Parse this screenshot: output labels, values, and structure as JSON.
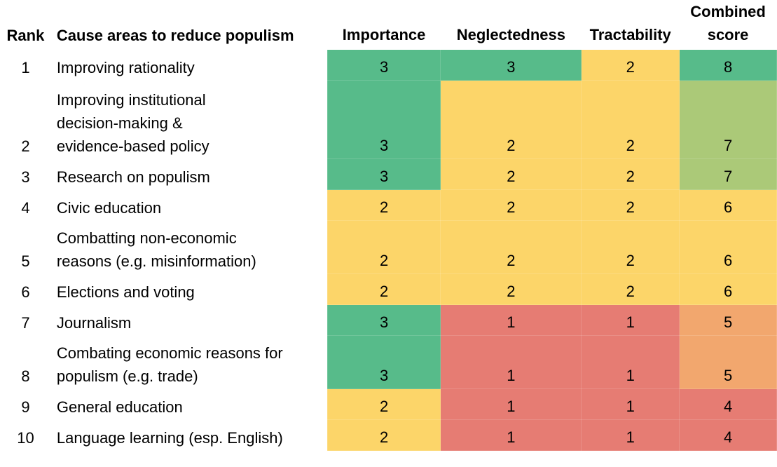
{
  "colors": {
    "green": "#57bb8a",
    "light_green": "#abc978",
    "yellow": "#fcd569",
    "orange": "#f2a76e",
    "red": "#e67c73"
  },
  "header": {
    "rank": "Rank",
    "cause": "Cause areas to reduce populism",
    "importance": "Importance",
    "neglectedness": "Neglectedness",
    "tractability": "Tractability",
    "combined_line1": "Combined",
    "combined_line2": "score"
  },
  "rows": [
    {
      "rank": "1",
      "cause_lines": [
        "Improving rationality"
      ],
      "importance": "3",
      "neglectedness": "3",
      "tractability": "2",
      "combined": "8",
      "colors": {
        "importance": "green",
        "neglectedness": "green",
        "tractability": "yellow",
        "combined": "green"
      }
    },
    {
      "rank": "2",
      "cause_lines": [
        "Improving institutional",
        "decision-making &",
        "evidence-based policy"
      ],
      "importance": "3",
      "neglectedness": "2",
      "tractability": "2",
      "combined": "7",
      "colors": {
        "importance": "green",
        "neglectedness": "yellow",
        "tractability": "yellow",
        "combined": "light_green"
      }
    },
    {
      "rank": "3",
      "cause_lines": [
        "Research on populism"
      ],
      "importance": "3",
      "neglectedness": "2",
      "tractability": "2",
      "combined": "7",
      "colors": {
        "importance": "green",
        "neglectedness": "yellow",
        "tractability": "yellow",
        "combined": "light_green"
      }
    },
    {
      "rank": "4",
      "cause_lines": [
        "Civic education"
      ],
      "importance": "2",
      "neglectedness": "2",
      "tractability": "2",
      "combined": "6",
      "colors": {
        "importance": "yellow",
        "neglectedness": "yellow",
        "tractability": "yellow",
        "combined": "yellow"
      }
    },
    {
      "rank": "5",
      "cause_lines": [
        "Combatting non-economic",
        "reasons (e.g. misinformation)"
      ],
      "importance": "2",
      "neglectedness": "2",
      "tractability": "2",
      "combined": "6",
      "colors": {
        "importance": "yellow",
        "neglectedness": "yellow",
        "tractability": "yellow",
        "combined": "yellow"
      }
    },
    {
      "rank": "6",
      "cause_lines": [
        "Elections and voting"
      ],
      "importance": "2",
      "neglectedness": "2",
      "tractability": "2",
      "combined": "6",
      "colors": {
        "importance": "yellow",
        "neglectedness": "yellow",
        "tractability": "yellow",
        "combined": "yellow"
      }
    },
    {
      "rank": "7",
      "cause_lines": [
        "Journalism"
      ],
      "importance": "3",
      "neglectedness": "1",
      "tractability": "1",
      "combined": "5",
      "colors": {
        "importance": "green",
        "neglectedness": "red",
        "tractability": "red",
        "combined": "orange"
      }
    },
    {
      "rank": "8",
      "cause_lines": [
        "Combating economic reasons for",
        "populism (e.g. trade)"
      ],
      "importance": "3",
      "neglectedness": "1",
      "tractability": "1",
      "combined": "5",
      "colors": {
        "importance": "green",
        "neglectedness": "red",
        "tractability": "red",
        "combined": "orange"
      }
    },
    {
      "rank": "9",
      "cause_lines": [
        "General education"
      ],
      "importance": "2",
      "neglectedness": "1",
      "tractability": "1",
      "combined": "4",
      "colors": {
        "importance": "yellow",
        "neglectedness": "red",
        "tractability": "red",
        "combined": "red"
      }
    },
    {
      "rank": "10",
      "cause_lines": [
        "Language learning (esp. English)"
      ],
      "importance": "2",
      "neglectedness": "1",
      "tractability": "1",
      "combined": "4",
      "colors": {
        "importance": "yellow",
        "neglectedness": "red",
        "tractability": "red",
        "combined": "red"
      }
    }
  ]
}
